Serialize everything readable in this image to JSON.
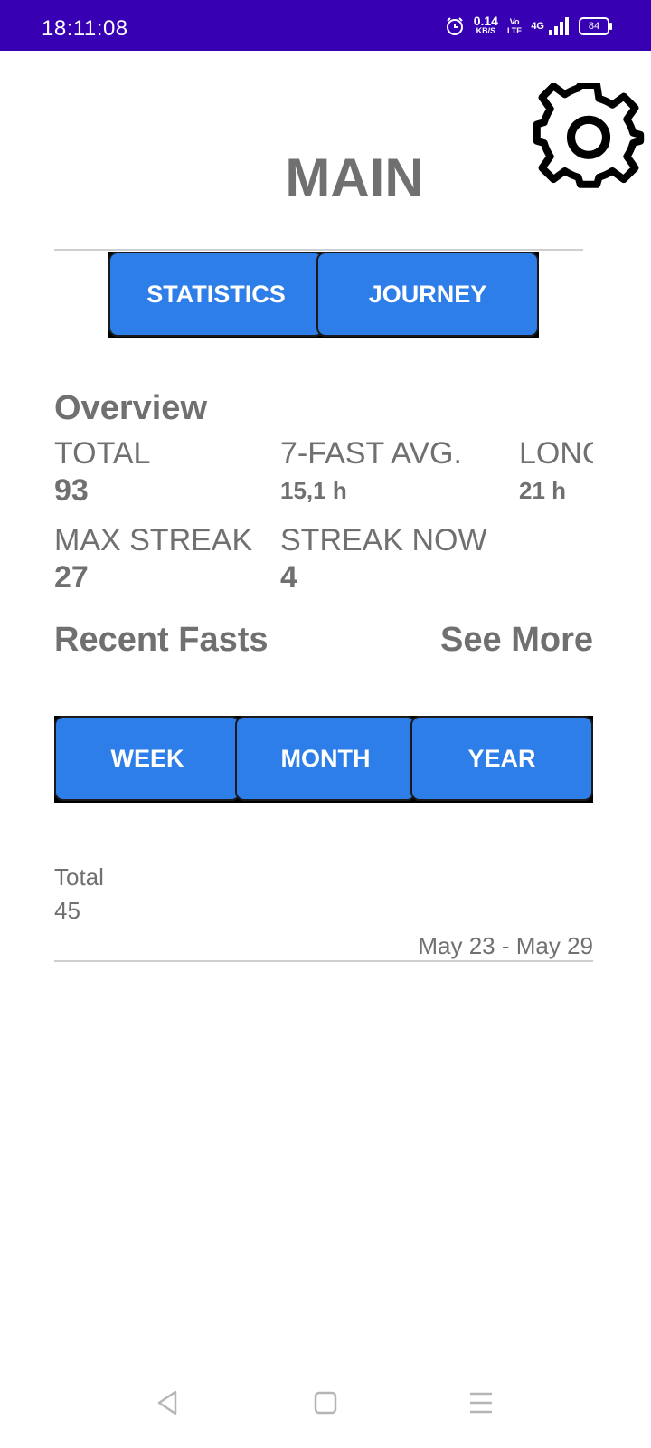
{
  "status_bar": {
    "time": "18:11:08",
    "net_speed_value": "0.14",
    "net_speed_unit": "KB/S",
    "volte_top": "Vo",
    "volte_bottom": "LTE",
    "network": "4G",
    "battery": "84",
    "icons": [
      "alarm-icon",
      "signal-icon",
      "battery-icon"
    ]
  },
  "header": {
    "title": "MAIN",
    "settings_icon": "gear-icon"
  },
  "top_tabs": [
    {
      "label": "STATISTICS"
    },
    {
      "label": "JOURNEY"
    }
  ],
  "overview": {
    "title": "Overview",
    "total_label": "TOTAL",
    "total_value": "93",
    "avg_label": "7-FAST AVG.",
    "avg_value": "15,1 h",
    "longest_label": "LONG",
    "longest_value": "21 h",
    "max_streak_label": "MAX STREAK",
    "max_streak_value": "27",
    "streak_now_label": "STREAK NOW",
    "streak_now_value": "4"
  },
  "recent": {
    "title": "Recent Fasts",
    "see_more": "See More"
  },
  "period_tabs": [
    {
      "label": "WEEK"
    },
    {
      "label": "MONTH"
    },
    {
      "label": "YEAR"
    }
  ],
  "summary": {
    "total_label": "Total",
    "total_value": "45",
    "date_range": "May 23 - May 29"
  },
  "nav": {
    "back_icon": "back-icon",
    "home_icon": "home-icon",
    "menu_icon": "menu-icon"
  },
  "colors": {
    "status_bar": "#3700b3",
    "button": "#2e7ee9",
    "text": "#707070"
  }
}
